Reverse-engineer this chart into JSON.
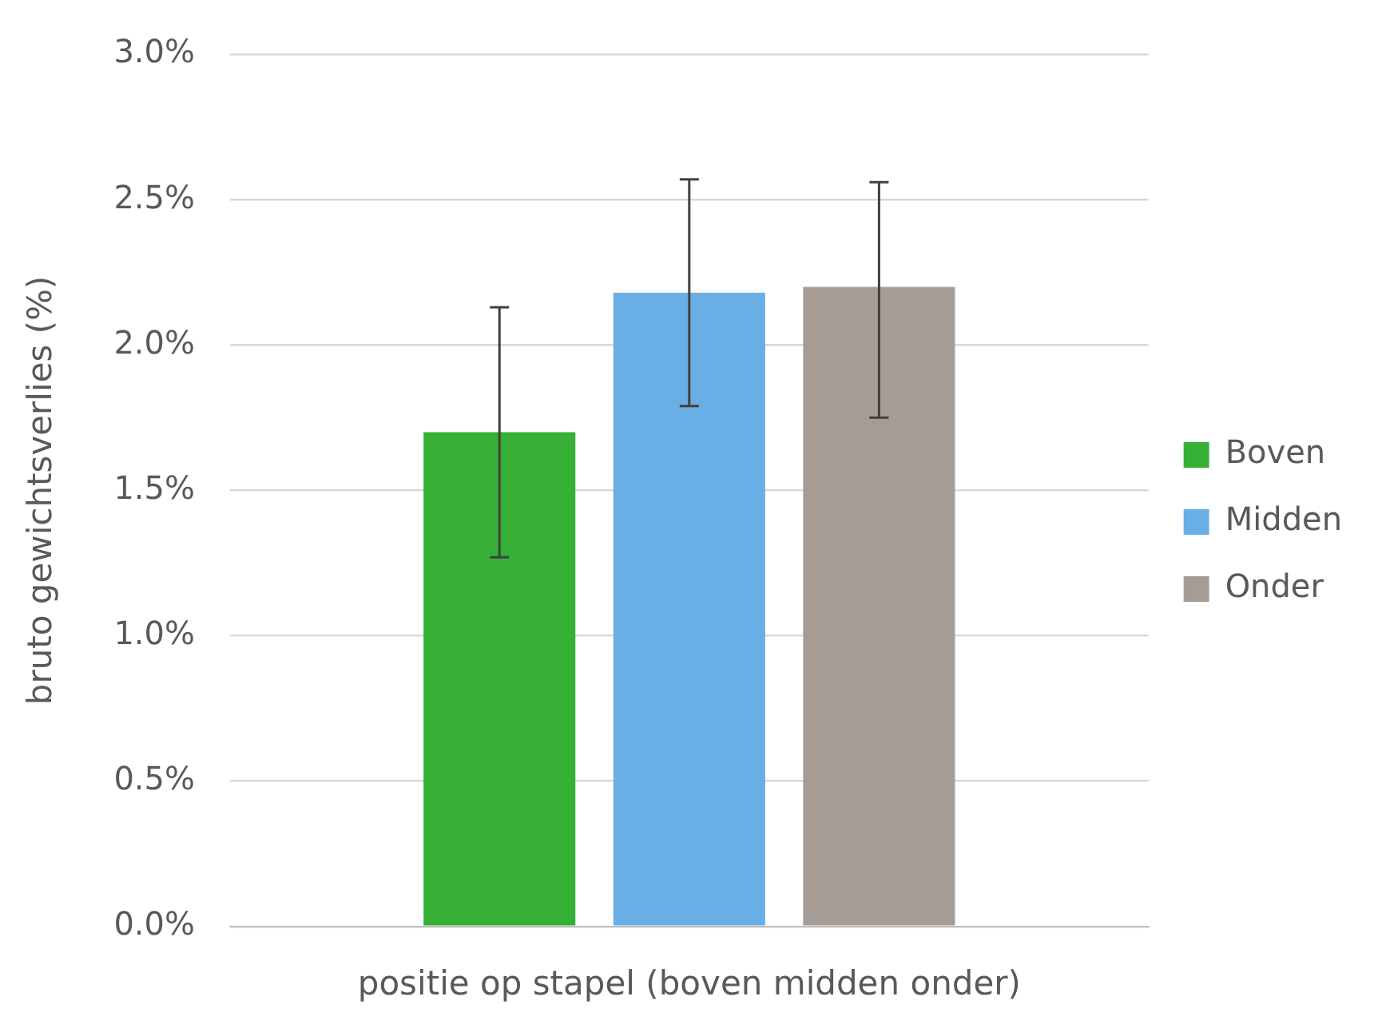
{
  "chart_data": {
    "type": "bar",
    "xlabel": "positie op stapel (boven midden onder)",
    "ylabel": "bruto gewichtsverlies (%)",
    "categories": [
      null
    ],
    "series": [
      {
        "name": "Boven",
        "color": "#35b035",
        "values": [
          1.7
        ],
        "errors": [
          [
            1.27,
            2.13
          ]
        ]
      },
      {
        "name": "Midden",
        "color": "#6aaee6",
        "values": [
          2.18
        ],
        "errors": [
          [
            1.79,
            2.57
          ]
        ]
      },
      {
        "name": "Onder",
        "color": "#a59c95",
        "values": [
          2.2
        ],
        "errors": [
          [
            1.75,
            2.56
          ]
        ]
      }
    ],
    "ylim": [
      0,
      3
    ],
    "yticks": [
      {
        "value": 0,
        "label": "0.0%"
      },
      {
        "value": 0.5,
        "label": "0.5%"
      },
      {
        "value": 1,
        "label": "1.0%"
      },
      {
        "value": 1.5,
        "label": "1.5%"
      },
      {
        "value": 2,
        "label": "2.0%"
      },
      {
        "value": 2.5,
        "label": "2.5%"
      },
      {
        "value": 3,
        "label": "3.0%"
      }
    ],
    "grid": "y",
    "legend": "right"
  }
}
